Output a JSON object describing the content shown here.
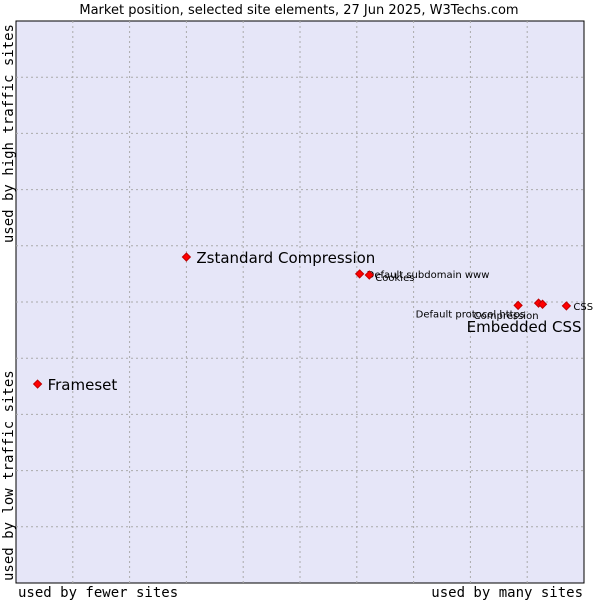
{
  "chart_data": {
    "type": "scatter",
    "title": "Market position, selected site elements, 27 Jun 2025, W3Techs.com",
    "xlabel_low": "used by fewer sites",
    "xlabel_high": "used by many sites",
    "ylabel_low": "used by low traffic sites",
    "ylabel_high": "used by high traffic sites",
    "xlim": [
      0,
      100
    ],
    "ylim": [
      0,
      100
    ],
    "grid": true,
    "points": [
      {
        "label": "Zstandard Compression",
        "x": 30.0,
        "y": 58.0,
        "size": "large"
      },
      {
        "label": "Frameset",
        "x": 3.8,
        "y": 35.4,
        "size": "large"
      },
      {
        "label": "Default subdomain www",
        "x": 60.5,
        "y": 55.0,
        "size": "small"
      },
      {
        "label": "Cookies",
        "x": 62.2,
        "y": 54.8,
        "size": "small"
      },
      {
        "label": "Default protocol https",
        "x": 88.4,
        "y": 49.4,
        "size": "small"
      },
      {
        "label": "Compression",
        "x": 92.0,
        "y": 49.8,
        "size": "small"
      },
      {
        "label": "Embedded CSS",
        "x": 92.7,
        "y": 49.6,
        "size": "large"
      },
      {
        "label": "CSS",
        "x": 96.9,
        "y": 49.3,
        "size": "small"
      }
    ]
  },
  "colors": {
    "plot_bg": "#e6e6f8",
    "grid": "#aaaaaa",
    "marker": "#ff0000"
  }
}
